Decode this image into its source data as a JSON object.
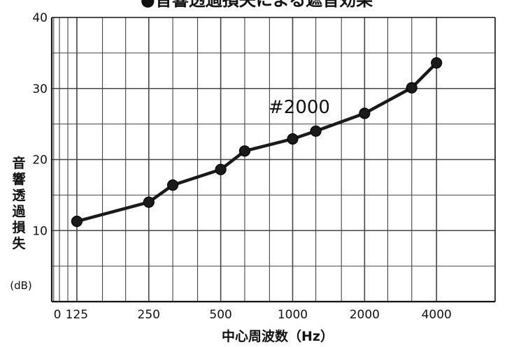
{
  "chart_data": {
    "type": "line",
    "title": "●音響透過損失による遮音効果",
    "xlabel": "中心周波数（Hz）",
    "ylabel": "音響透過損失",
    "yunit": "(dB)",
    "x_tick_labels": [
      "0",
      "125",
      "250",
      "500",
      "1000",
      "2000",
      "4000"
    ],
    "y_tick_labels": [
      "10",
      "20",
      "30",
      "40"
    ],
    "ylim": [
      0,
      40
    ],
    "x_scale": "log (1/3 octave bands)",
    "grid": true,
    "series": [
      {
        "name": "#2000",
        "x": [
          125,
          250,
          315,
          500,
          630,
          1000,
          1250,
          2000,
          3150,
          4000
        ],
        "y": [
          11.3,
          14.0,
          16.4,
          18.6,
          21.2,
          22.9,
          24.0,
          26.5,
          30.1,
          33.6
        ]
      }
    ],
    "annotation": "#2000",
    "line_color": "#1a1a1a",
    "grid_color": "#444444"
  }
}
